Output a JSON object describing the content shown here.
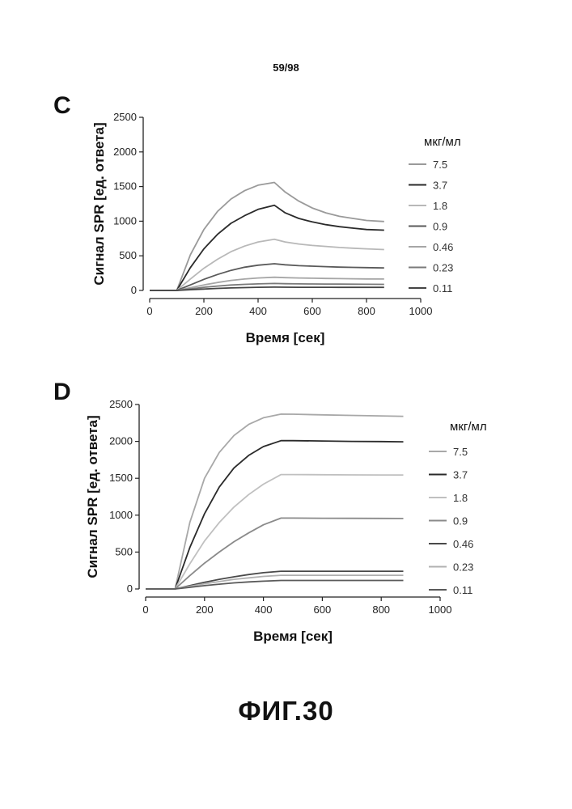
{
  "page": {
    "number": "59/98",
    "caption": "ФИГ.30"
  },
  "chart_data": [
    {
      "panel": "C",
      "type": "line",
      "xlabel": "Время [сек]",
      "ylabel": "Сигнал SPR [ед. ответа]",
      "xlim": [
        0,
        1000
      ],
      "ylim": [
        0,
        2500
      ],
      "xticks": [
        0,
        200,
        400,
        600,
        800,
        1000
      ],
      "yticks": [
        0,
        500,
        1000,
        1500,
        2000,
        2500
      ],
      "legend_title": "мкг/мл",
      "legend_position": "right",
      "x": [
        0,
        100,
        150,
        200,
        250,
        300,
        350,
        400,
        460,
        500,
        550,
        600,
        650,
        700,
        750,
        800,
        865
      ],
      "series": [
        {
          "name": "7.5",
          "color": "#9a9a9a",
          "values": [
            0,
            0,
            515,
            880,
            1140,
            1320,
            1440,
            1520,
            1560,
            1420,
            1290,
            1190,
            1120,
            1070,
            1040,
            1010,
            995
          ]
        },
        {
          "name": "3.7",
          "color": "#2a2a2a",
          "values": [
            0,
            0,
            330,
            600,
            810,
            970,
            1080,
            1170,
            1230,
            1120,
            1040,
            990,
            950,
            920,
            900,
            880,
            870
          ]
        },
        {
          "name": "1.8",
          "color": "#b8b8b8",
          "values": [
            0,
            0,
            165,
            320,
            450,
            560,
            640,
            700,
            740,
            700,
            670,
            650,
            635,
            620,
            610,
            600,
            590
          ]
        },
        {
          "name": "0.9",
          "color": "#5a5a5a",
          "values": [
            0,
            0,
            80,
            160,
            230,
            290,
            335,
            365,
            385,
            370,
            358,
            350,
            343,
            337,
            333,
            330,
            325
          ]
        },
        {
          "name": "0.46",
          "color": "#a6a6a6",
          "values": [
            0,
            0,
            40,
            80,
            115,
            145,
            165,
            180,
            190,
            185,
            180,
            176,
            173,
            170,
            168,
            166,
            165
          ]
        },
        {
          "name": "0.23",
          "color": "#7a7a7a",
          "values": [
            0,
            0,
            22,
            45,
            63,
            78,
            88,
            95,
            100,
            97,
            95,
            93,
            92,
            91,
            90,
            89,
            88
          ]
        },
        {
          "name": "0.11",
          "color": "#454545",
          "values": [
            0,
            0,
            10,
            20,
            29,
            36,
            41,
            45,
            48,
            47,
            46,
            45,
            45,
            44,
            44,
            44,
            44
          ]
        }
      ]
    },
    {
      "panel": "D",
      "type": "line",
      "xlabel": "Время [сек]",
      "ylabel": "Сигнал SPR [ед. ответа]",
      "xlim": [
        0,
        1000
      ],
      "ylim": [
        0,
        2500
      ],
      "xticks": [
        0,
        200,
        400,
        600,
        800,
        1000
      ],
      "yticks": [
        0,
        500,
        1000,
        1500,
        2000,
        2500
      ],
      "legend_title": "мкг/мл",
      "legend_position": "right",
      "x": [
        0,
        100,
        150,
        200,
        250,
        300,
        350,
        400,
        460,
        500,
        600,
        700,
        800,
        875
      ],
      "series": [
        {
          "name": "7.5",
          "color": "#a8a8a8",
          "values": [
            0,
            0,
            900,
            1500,
            1850,
            2080,
            2230,
            2320,
            2370,
            2368,
            2360,
            2352,
            2345,
            2340
          ]
        },
        {
          "name": "3.7",
          "color": "#2a2a2a",
          "values": [
            0,
            0,
            560,
            1020,
            1380,
            1640,
            1810,
            1930,
            2010,
            2010,
            2005,
            2000,
            1998,
            1995
          ]
        },
        {
          "name": "1.8",
          "color": "#c0c0c0",
          "values": [
            0,
            0,
            340,
            650,
            900,
            1110,
            1280,
            1420,
            1550,
            1550,
            1548,
            1546,
            1545,
            1544
          ]
        },
        {
          "name": "0.9",
          "color": "#8a8a8a",
          "values": [
            0,
            0,
            180,
            350,
            500,
            640,
            760,
            870,
            960,
            960,
            958,
            957,
            956,
            955
          ]
        },
        {
          "name": "0.46",
          "color": "#4a4a4a",
          "values": [
            0,
            0,
            45,
            90,
            130,
            165,
            195,
            220,
            240,
            240,
            240,
            240,
            240,
            240
          ]
        },
        {
          "name": "0.23",
          "color": "#b0b0b0",
          "values": [
            0,
            0,
            35,
            70,
            100,
            130,
            150,
            170,
            185,
            185,
            185,
            185,
            185,
            185
          ]
        },
        {
          "name": "0.11",
          "color": "#5a5a5a",
          "values": [
            0,
            0,
            22,
            45,
            65,
            82,
            95,
            105,
            115,
            115,
            115,
            115,
            115,
            115
          ]
        }
      ]
    }
  ]
}
